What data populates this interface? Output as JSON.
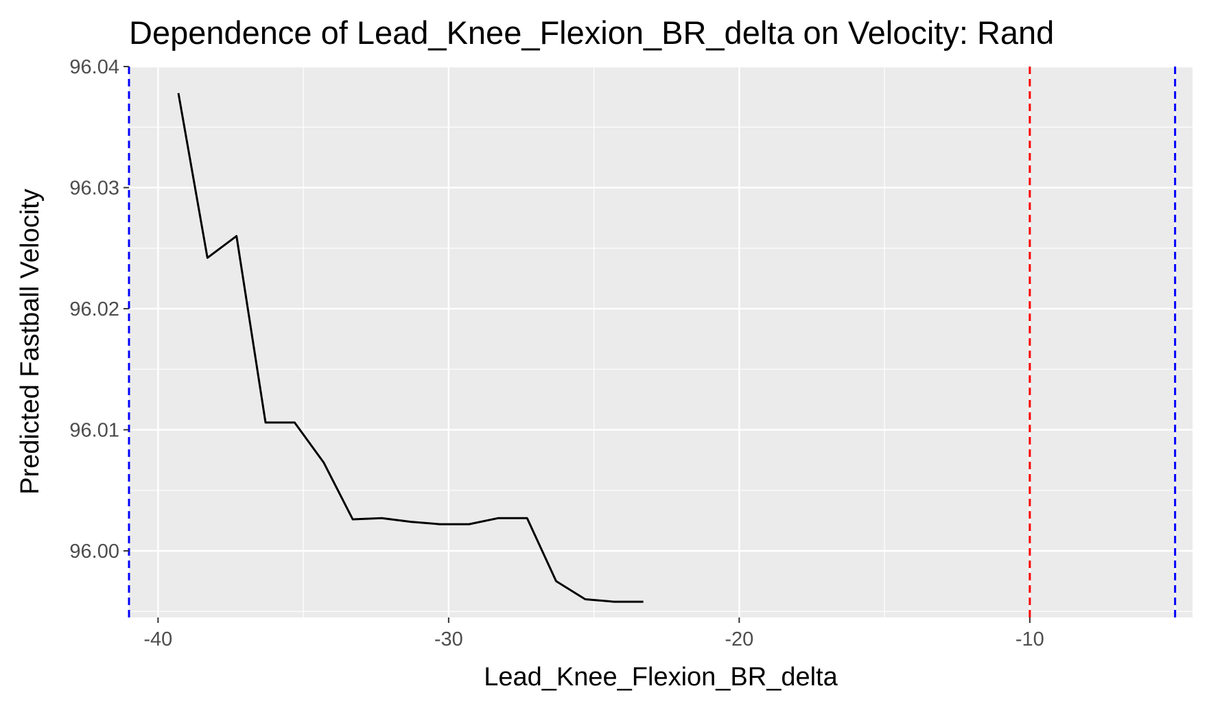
{
  "chart_data": {
    "type": "line",
    "title": "Dependence of Lead_Knee_Flexion_BR_delta on Velocity: Rand",
    "xlabel": "Lead_Knee_Flexion_BR_delta",
    "ylabel": "Predicted Fastball Velocity",
    "xlim": [
      -41.0,
      -4.4
    ],
    "ylim": [
      95.9945,
      96.04
    ],
    "x_ticks": [
      -40,
      -30,
      -20,
      -10
    ],
    "x_tick_labels": [
      "-40",
      "-30",
      "-20",
      "-10"
    ],
    "y_ticks": [
      96.0,
      96.01,
      96.02,
      96.03,
      96.04
    ],
    "y_tick_labels": [
      "96.00",
      "96.01",
      "96.02",
      "96.03",
      "96.04"
    ],
    "grid": true,
    "series": [
      {
        "color": "#000000",
        "x": [
          -39.3,
          -38.3,
          -37.3,
          -36.3,
          -35.3,
          -34.3,
          -33.3,
          -32.3,
          -31.3,
          -30.3,
          -29.3,
          -28.3,
          -27.3,
          -26.3,
          -25.3,
          -24.3,
          -23.3
        ],
        "y": [
          96.0378,
          96.0242,
          96.026,
          96.0106,
          96.0106,
          96.0073,
          96.0026,
          96.0027,
          96.0024,
          96.0022,
          96.0022,
          96.0027,
          96.0027,
          95.9975,
          95.996,
          95.9958,
          95.9958
        ]
      }
    ],
    "reference_lines": [
      {
        "x": -41.0,
        "color": "#0000ff",
        "style": "dashed"
      },
      {
        "x": -10.0,
        "color": "#ff0000",
        "style": "dashed"
      },
      {
        "x": -5.0,
        "color": "#0000ff",
        "style": "dashed"
      }
    ],
    "colors": {
      "panel_background": "#ebebeb",
      "grid": "#ffffff",
      "line": "#000000"
    }
  }
}
